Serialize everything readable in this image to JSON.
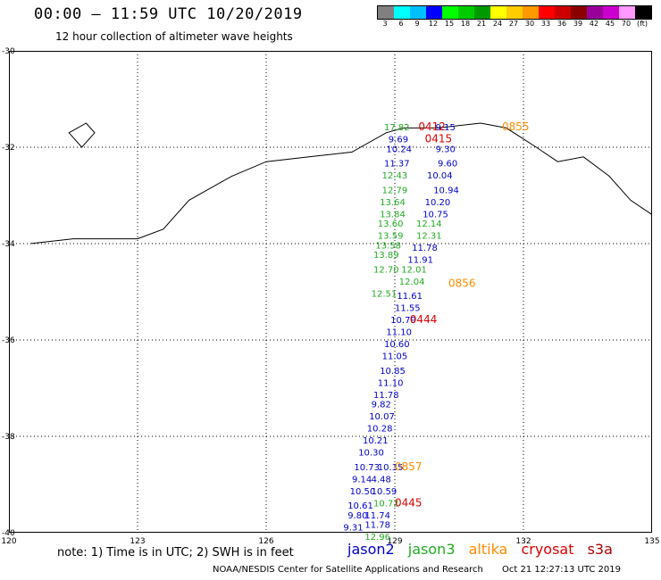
{
  "header": {
    "title": "00:00 – 11:59 UTC 10/20/2019",
    "subtitle": "12 hour collection of altimeter wave heights"
  },
  "legend": {
    "colors": [
      "#808080",
      "#00ffff",
      "#00bfff",
      "#0000ff",
      "#00ff00",
      "#00cc00",
      "#009900",
      "#ffff00",
      "#ffcc00",
      "#ff9900",
      "#ff0000",
      "#cc0000",
      "#8b0000",
      "#990099",
      "#cc00cc",
      "#ff99ff",
      "#000000"
    ],
    "labels": [
      "3",
      "6",
      "9",
      "12",
      "15",
      "18",
      "21",
      "24",
      "27",
      "30",
      "33",
      "36",
      "39",
      "42",
      "45",
      "70",
      "(ft)"
    ]
  },
  "map": {
    "lon_min": 120,
    "lon_max": 135,
    "lat_min": -40,
    "lat_max": -30,
    "lon_labels": [
      "120",
      "123",
      "126",
      "129",
      "132",
      "135"
    ],
    "lat_labels": [
      "-30",
      "-32",
      "-34",
      "-36",
      "-38",
      "-40"
    ],
    "coastline": [
      [
        120.5,
        -34.0
      ],
      [
        121.5,
        -33.9
      ],
      [
        122.2,
        -33.9
      ],
      [
        123.0,
        -33.9
      ],
      [
        123.6,
        -33.7
      ],
      [
        124.2,
        -33.1
      ],
      [
        124.6,
        -32.9
      ],
      [
        125.2,
        -32.6
      ],
      [
        126.0,
        -32.3
      ],
      [
        127.0,
        -32.2
      ],
      [
        128.0,
        -32.1
      ],
      [
        128.8,
        -31.7
      ],
      [
        129.2,
        -31.6
      ],
      [
        130.0,
        -31.6
      ],
      [
        131.0,
        -31.5
      ],
      [
        131.6,
        -31.6
      ],
      [
        132.3,
        -32.0
      ],
      [
        132.8,
        -32.3
      ],
      [
        133.4,
        -32.2
      ],
      [
        134.0,
        -32.6
      ],
      [
        134.5,
        -33.1
      ],
      [
        135.0,
        -33.4
      ]
    ],
    "island": [
      [
        121.4,
        -31.7
      ],
      [
        121.8,
        -31.5
      ],
      [
        122.0,
        -31.7
      ],
      [
        121.7,
        -32.0
      ]
    ],
    "passes": [
      {
        "satellite": "jason3",
        "lat": -31.65,
        "lon": 128.75,
        "value": "17.82"
      },
      {
        "satellite": "cryosat",
        "lat": -31.65,
        "lon": 129.55,
        "value": "0412"
      },
      {
        "satellite": "jason2",
        "lat": -31.65,
        "lon": 129.95,
        "value": "9.15"
      },
      {
        "satellite": "altika",
        "lat": -31.65,
        "lon": 131.5,
        "value": "0855"
      },
      {
        "satellite": "jason2",
        "lat": -31.9,
        "lon": 128.85,
        "value": "9.69"
      },
      {
        "satellite": "cryosat",
        "lat": -31.9,
        "lon": 129.7,
        "value": "0415"
      },
      {
        "satellite": "jason2",
        "lat": -32.1,
        "lon": 128.8,
        "value": "10.24"
      },
      {
        "satellite": "jason2",
        "lat": -32.1,
        "lon": 129.95,
        "value": "9.30"
      },
      {
        "satellite": "jason2",
        "lat": -32.4,
        "lon": 128.75,
        "value": "11.37"
      },
      {
        "satellite": "jason2",
        "lat": -32.4,
        "lon": 130.0,
        "value": "9.60"
      },
      {
        "satellite": "jason3",
        "lat": -32.65,
        "lon": 128.7,
        "value": "12.43"
      },
      {
        "satellite": "jason2",
        "lat": -32.65,
        "lon": 129.75,
        "value": "10.04"
      },
      {
        "satellite": "jason3",
        "lat": -32.95,
        "lon": 128.7,
        "value": "12.79"
      },
      {
        "satellite": "jason2",
        "lat": -32.95,
        "lon": 129.9,
        "value": "10.94"
      },
      {
        "satellite": "jason3",
        "lat": -33.2,
        "lon": 128.65,
        "value": "13.64"
      },
      {
        "satellite": "jason2",
        "lat": -33.2,
        "lon": 129.7,
        "value": "10.20"
      },
      {
        "satellite": "jason3",
        "lat": -33.45,
        "lon": 128.65,
        "value": "13.84"
      },
      {
        "satellite": "jason2",
        "lat": -33.45,
        "lon": 129.65,
        "value": "10.75"
      },
      {
        "satellite": "jason3",
        "lat": -33.65,
        "lon": 128.6,
        "value": "13.60"
      },
      {
        "satellite": "jason3",
        "lat": -33.65,
        "lon": 129.5,
        "value": "12.14"
      },
      {
        "satellite": "jason3",
        "lat": -33.9,
        "lon": 128.6,
        "value": "13.59"
      },
      {
        "satellite": "jason3",
        "lat": -33.9,
        "lon": 129.5,
        "value": "12.31"
      },
      {
        "satellite": "jason3",
        "lat": -34.1,
        "lon": 128.55,
        "value": "13.58"
      },
      {
        "satellite": "jason2",
        "lat": -34.15,
        "lon": 129.4,
        "value": "11.78"
      },
      {
        "satellite": "jason3",
        "lat": -34.3,
        "lon": 128.5,
        "value": "13.89"
      },
      {
        "satellite": "jason2",
        "lat": -34.4,
        "lon": 129.3,
        "value": "11.91"
      },
      {
        "satellite": "jason3",
        "lat": -34.6,
        "lon": 128.5,
        "value": "12.70"
      },
      {
        "satellite": "jason3",
        "lat": -34.6,
        "lon": 129.15,
        "value": "12.01"
      },
      {
        "satellite": "jason3",
        "lat": -34.85,
        "lon": 129.1,
        "value": "12.04"
      },
      {
        "satellite": "altika",
        "lat": -34.9,
        "lon": 130.25,
        "value": "0856"
      },
      {
        "satellite": "jason3",
        "lat": -35.1,
        "lon": 128.45,
        "value": "12.51"
      },
      {
        "satellite": "jason2",
        "lat": -35.15,
        "lon": 129.05,
        "value": "11.61"
      },
      {
        "satellite": "jason2",
        "lat": -35.4,
        "lon": 129.0,
        "value": "11.55"
      },
      {
        "satellite": "jason2",
        "lat": -35.65,
        "lon": 128.9,
        "value": "10.79"
      },
      {
        "satellite": "cryosat",
        "lat": -35.65,
        "lon": 129.35,
        "value": "0444"
      },
      {
        "satellite": "jason2",
        "lat": -35.9,
        "lon": 128.8,
        "value": "11.10"
      },
      {
        "satellite": "jason2",
        "lat": -36.15,
        "lon": 128.75,
        "value": "10.60"
      },
      {
        "satellite": "jason2",
        "lat": -36.4,
        "lon": 128.7,
        "value": "11.05"
      },
      {
        "satellite": "jason2",
        "lat": -36.7,
        "lon": 128.65,
        "value": "10.85"
      },
      {
        "satellite": "jason2",
        "lat": -36.95,
        "lon": 128.6,
        "value": "11.10"
      },
      {
        "satellite": "jason2",
        "lat": -37.2,
        "lon": 128.5,
        "value": "11.78"
      },
      {
        "satellite": "jason2",
        "lat": -37.4,
        "lon": 128.45,
        "value": "9.82"
      },
      {
        "satellite": "jason2",
        "lat": -37.65,
        "lon": 128.4,
        "value": "10.07"
      },
      {
        "satellite": "jason2",
        "lat": -37.9,
        "lon": 128.35,
        "value": "10.28"
      },
      {
        "satellite": "jason2",
        "lat": -38.15,
        "lon": 128.25,
        "value": "10.21"
      },
      {
        "satellite": "jason2",
        "lat": -38.4,
        "lon": 128.15,
        "value": "10.30"
      },
      {
        "satellite": "jason2",
        "lat": -38.7,
        "lon": 128.05,
        "value": "10.73"
      },
      {
        "satellite": "jason2",
        "lat": -38.7,
        "lon": 128.6,
        "value": "10.35"
      },
      {
        "satellite": "altika",
        "lat": -38.7,
        "lon": 129.0,
        "value": "0857"
      },
      {
        "satellite": "jason2",
        "lat": -38.95,
        "lon": 128.0,
        "value": "9.14"
      },
      {
        "satellite": "jason2",
        "lat": -38.95,
        "lon": 128.45,
        "value": "4.48"
      },
      {
        "satellite": "jason2",
        "lat": -39.2,
        "lon": 127.95,
        "value": "10.50"
      },
      {
        "satellite": "jason2",
        "lat": -39.2,
        "lon": 128.45,
        "value": "10.59"
      },
      {
        "satellite": "jason3",
        "lat": -39.45,
        "lon": 128.5,
        "value": "10.72"
      },
      {
        "satellite": "cryosat",
        "lat": -39.45,
        "lon": 129.0,
        "value": "0445"
      },
      {
        "satellite": "jason2",
        "lat": -39.5,
        "lon": 127.9,
        "value": "10.61"
      },
      {
        "satellite": "jason2",
        "lat": -39.7,
        "lon": 127.9,
        "value": "9.80"
      },
      {
        "satellite": "jason2",
        "lat": -39.7,
        "lon": 128.3,
        "value": "11.74"
      },
      {
        "satellite": "jason2",
        "lat": -39.95,
        "lon": 127.8,
        "value": "9.31"
      },
      {
        "satellite": "jason2",
        "lat": -39.9,
        "lon": 128.3,
        "value": "11.78"
      },
      {
        "satellite": "jason3",
        "lat": -40.15,
        "lon": 128.3,
        "value": "12.96"
      }
    ]
  },
  "satellite_colors": {
    "jason2": "#0000cc",
    "jason3": "#22aa22",
    "altika": "#ff8c00",
    "cryosat": "#dd0000",
    "s3a": "#aa0000"
  },
  "note": "note:  1) Time is in UTC;  2) SWH is in feet",
  "satellites": {
    "jason2": "jason2",
    "jason3": "jason3",
    "altika": "altika",
    "cryosat": "cryosat",
    "s3a": "s3a"
  },
  "footer": {
    "credit": "NOAA/NESDIS Center for Satellite Applications and Research",
    "timestamp": "Oct 21 12:27:13 UTC 2019"
  }
}
